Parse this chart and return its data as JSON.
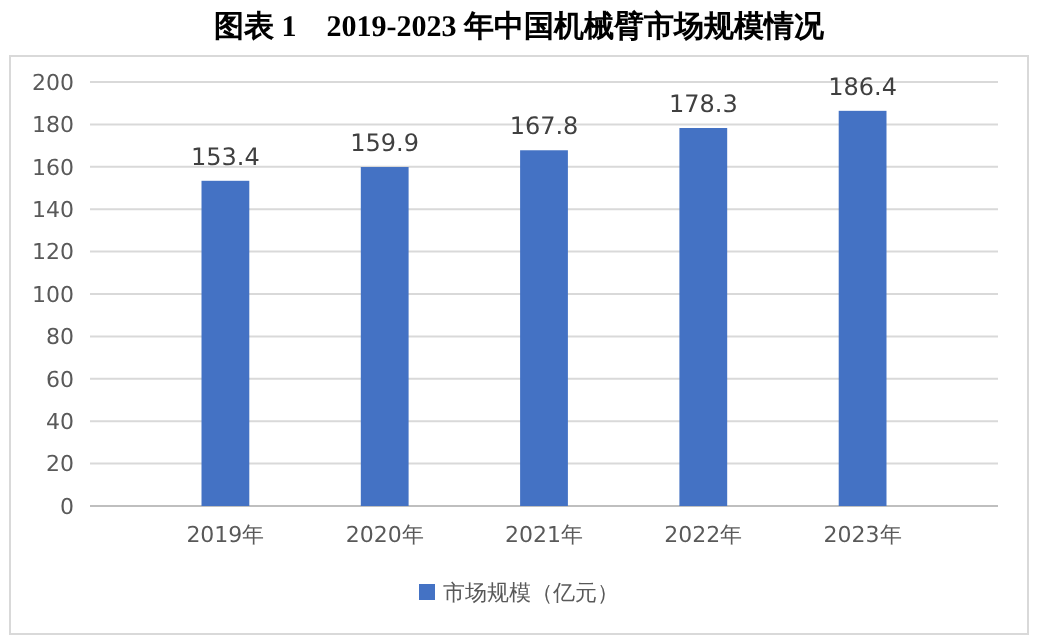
{
  "chart_data": {
    "type": "bar",
    "title": "图表 1　2019-2023 年中国机械臂市场规模情况",
    "categories": [
      "2019年",
      "2020年",
      "2021年",
      "2022年",
      "2023年"
    ],
    "series": [
      {
        "name": "市场规模（亿元）",
        "color": "#4472c4",
        "values": [
          153.4,
          159.9,
          167.8,
          178.3,
          186.4
        ]
      }
    ],
    "ylim": [
      0,
      200
    ],
    "yticks": [
      0,
      20,
      40,
      60,
      80,
      100,
      120,
      140,
      160,
      180,
      200
    ],
    "grid": "y",
    "legend": "bottom",
    "data_labels": true
  }
}
